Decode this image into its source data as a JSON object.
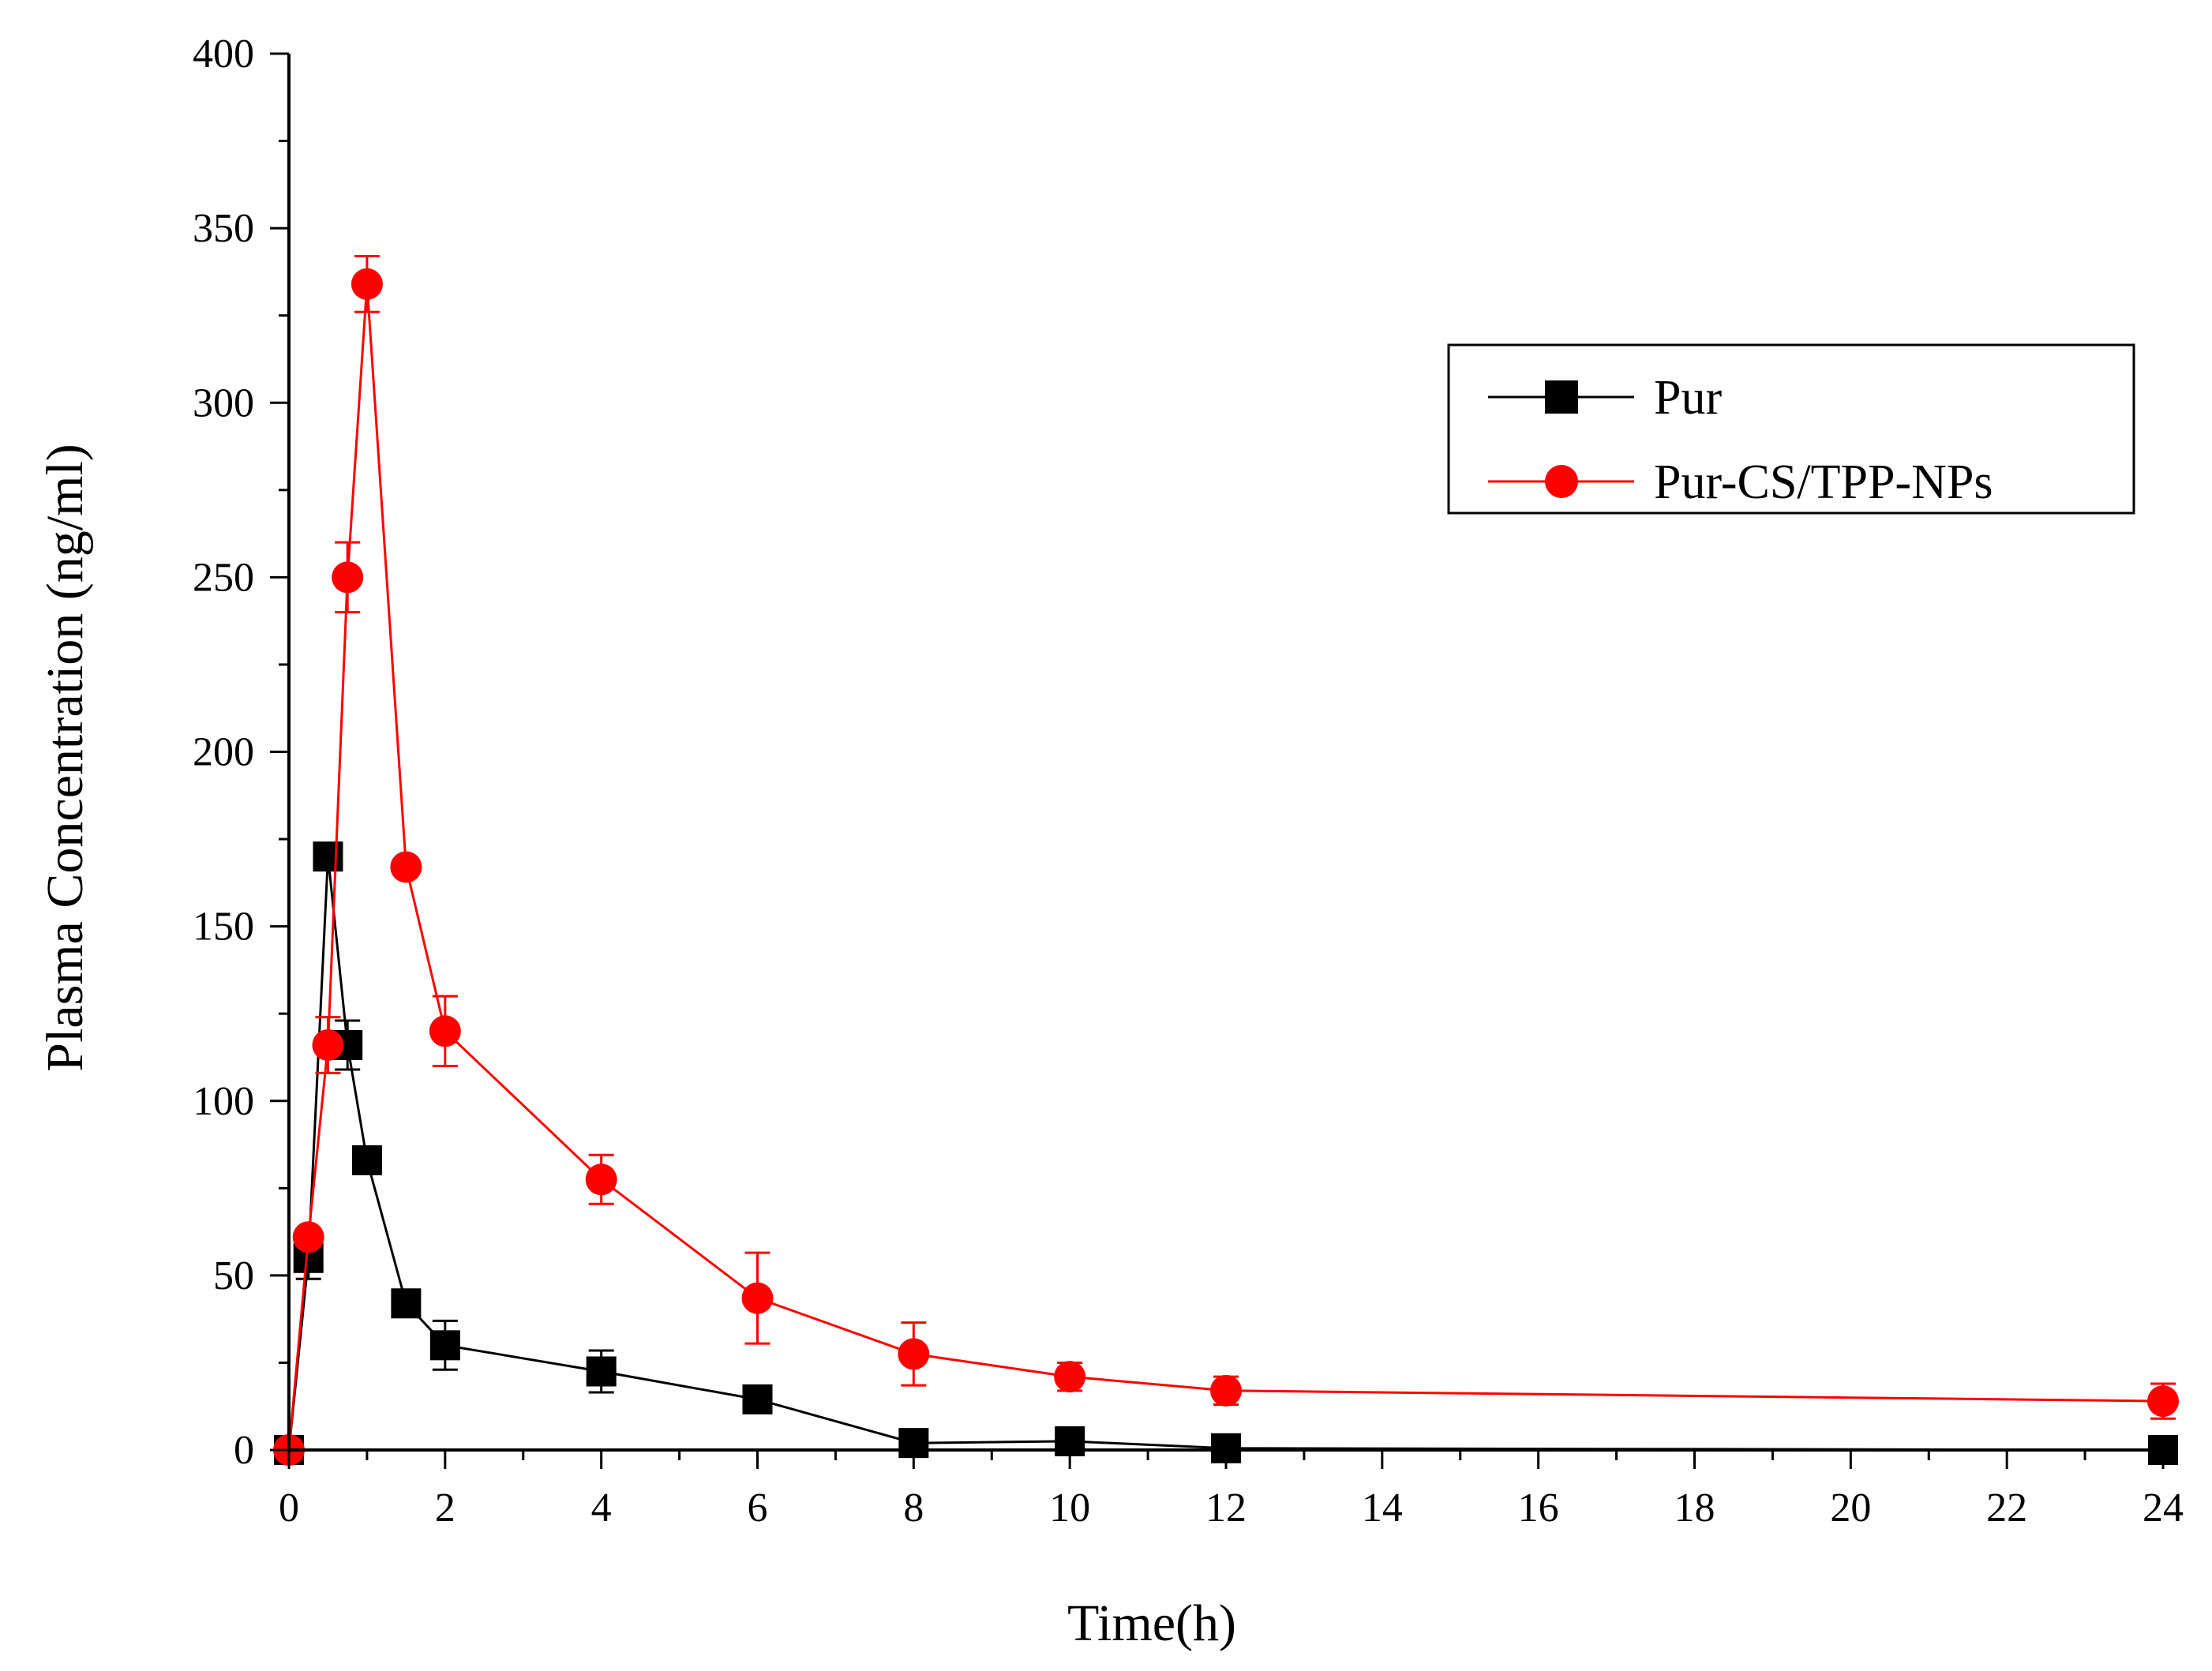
{
  "chart_data": {
    "type": "line",
    "title": "",
    "xlabel": "Time(h)",
    "ylabel": "Plasma Concentration (ng/ml)",
    "xlim": [
      0,
      24
    ],
    "ylim": [
      0,
      400
    ],
    "x_ticks": [
      0,
      2,
      4,
      6,
      8,
      10,
      12,
      14,
      16,
      18,
      20,
      22,
      24
    ],
    "y_ticks": [
      0,
      50,
      100,
      150,
      200,
      250,
      300,
      350,
      400
    ],
    "grid": false,
    "legend_position": "top-right",
    "series": [
      {
        "name": "Pur",
        "color": "#000000",
        "marker": "square",
        "x": [
          0,
          0.25,
          0.5,
          0.75,
          1,
          1.5,
          2,
          4,
          6,
          8,
          10,
          12,
          24
        ],
        "y": [
          0,
          55,
          170,
          116,
          83,
          42,
          30,
          22.5,
          14.5,
          2,
          2.5,
          0.5,
          0
        ],
        "err": [
          0,
          6,
          0,
          7,
          0,
          0,
          7,
          6,
          3,
          0,
          2,
          0,
          0
        ]
      },
      {
        "name": "Pur-CS/TPP-NPs",
        "color": "#ff0000",
        "marker": "circle",
        "x": [
          0,
          0.25,
          0.5,
          0.75,
          1,
          1.5,
          2,
          4,
          6,
          8,
          10,
          12,
          24
        ],
        "y": [
          0,
          61,
          116,
          250,
          334,
          167,
          120,
          77.5,
          43.5,
          27.5,
          21,
          17,
          14
        ],
        "err": [
          0,
          2,
          8,
          10,
          8,
          0,
          10,
          7,
          13,
          9,
          4,
          4,
          5
        ]
      }
    ]
  }
}
